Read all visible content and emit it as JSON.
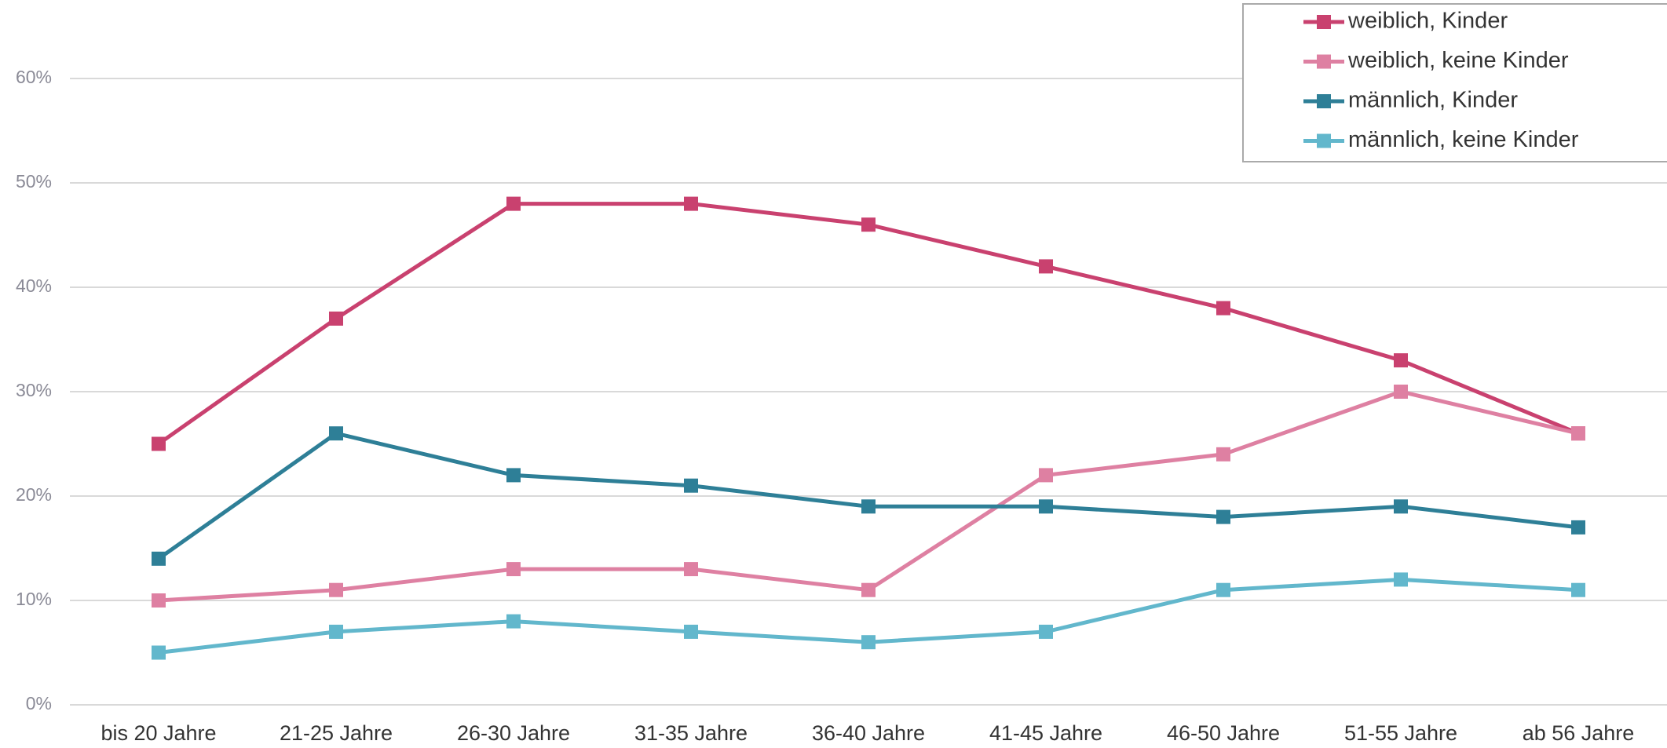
{
  "chart_data": {
    "type": "line",
    "categories": [
      "bis 20 Jahre",
      "21-25 Jahre",
      "26-30 Jahre",
      "31-35 Jahre",
      "36-40 Jahre",
      "41-45 Jahre",
      "46-50 Jahre",
      "51-55 Jahre",
      "ab 56 Jahre"
    ],
    "series": [
      {
        "name": "weiblich, Kinder",
        "color": "#c9416f",
        "values": [
          25,
          37,
          48,
          48,
          46,
          42,
          38,
          33,
          26
        ]
      },
      {
        "name": "weiblich, keine Kinder",
        "color": "#de80a2",
        "values": [
          10,
          11,
          13,
          13,
          11,
          22,
          24,
          30,
          26
        ]
      },
      {
        "name": "männlich, Kinder",
        "color": "#2e7f97",
        "values": [
          14,
          26,
          22,
          21,
          19,
          19,
          18,
          19,
          17
        ]
      },
      {
        "name": "männlich, keine Kinder",
        "color": "#62b7cc",
        "values": [
          5,
          7,
          8,
          7,
          6,
          7,
          11,
          12,
          11
        ]
      }
    ],
    "ylim": [
      0,
      60
    ],
    "yticks": [
      {
        "value": 0,
        "label": "0%"
      },
      {
        "value": 10,
        "label": "10%"
      },
      {
        "value": 20,
        "label": "20%"
      },
      {
        "value": 30,
        "label": "30%"
      },
      {
        "value": 40,
        "label": "40%"
      },
      {
        "value": 50,
        "label": "50%"
      },
      {
        "value": 60,
        "label": "60%"
      }
    ],
    "grid": true,
    "legend": "top-right"
  }
}
